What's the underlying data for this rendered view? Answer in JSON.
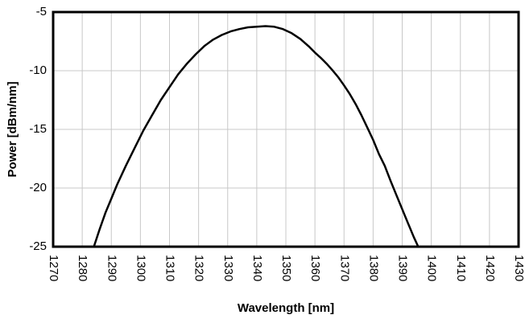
{
  "chart_data": {
    "type": "line",
    "xlabel": "Wavelength [nm]",
    "ylabel": "Power [dBm/nm]",
    "xlim": [
      1270,
      1430
    ],
    "ylim": [
      -25,
      -5
    ],
    "x_ticks": [
      1270,
      1280,
      1290,
      1300,
      1310,
      1320,
      1330,
      1340,
      1350,
      1360,
      1370,
      1380,
      1390,
      1400,
      1410,
      1420,
      1430
    ],
    "y_ticks": [
      -5,
      -10,
      -15,
      -20,
      -25
    ],
    "grid": true,
    "series": [
      {
        "x": [
          1284,
          1286,
          1288,
          1290,
          1292,
          1295,
          1298,
          1301,
          1304,
          1307,
          1310,
          1313,
          1316,
          1319,
          1322,
          1325,
          1328,
          1331,
          1334,
          1337,
          1340,
          1343,
          1346,
          1349,
          1352,
          1355,
          1358,
          1360,
          1362,
          1364,
          1366,
          1368,
          1370,
          1372,
          1374,
          1376,
          1378,
          1380,
          1382,
          1384,
          1386,
          1388,
          1390,
          1392,
          1394,
          1395.5
        ],
        "y": [
          -25,
          -23.5,
          -22.1,
          -20.9,
          -19.7,
          -18.1,
          -16.6,
          -15.1,
          -13.8,
          -12.5,
          -11.4,
          -10.3,
          -9.4,
          -8.6,
          -7.9,
          -7.35,
          -6.95,
          -6.65,
          -6.45,
          -6.3,
          -6.25,
          -6.2,
          -6.25,
          -6.45,
          -6.8,
          -7.3,
          -7.95,
          -8.45,
          -8.9,
          -9.4,
          -9.95,
          -10.55,
          -11.25,
          -12.0,
          -12.85,
          -13.8,
          -14.85,
          -15.9,
          -17.1,
          -18.1,
          -19.4,
          -20.6,
          -21.8,
          -23.0,
          -24.2,
          -25
        ]
      }
    ]
  }
}
